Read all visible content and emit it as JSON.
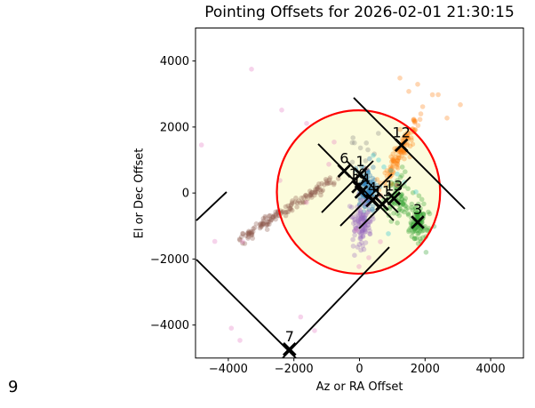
{
  "figure": {
    "title": "Pointing Offsets for 2026-02-01 21:30:15",
    "xlabel": "Az or RA Offset",
    "ylabel": "El or Dec Offset",
    "corner_label": "9",
    "xlim": [
      -5000,
      5000
    ],
    "ylim": [
      -5000,
      5000
    ],
    "xticks": [
      -4000,
      -2000,
      0,
      2000,
      4000
    ],
    "yticks": [
      -4000,
      -2000,
      0,
      2000,
      4000
    ],
    "background": "#ffffff",
    "frame_color": "#000000"
  },
  "chart_data": {
    "type": "scatter",
    "title": "Pointing Offsets for 2026-02-01 21:30:15",
    "xlabel": "Az or RA Offset",
    "ylabel": "El or Dec Offset",
    "xlim": [
      -5000,
      5000
    ],
    "ylim": [
      -5000,
      5000
    ],
    "grid": false,
    "legend": "none",
    "search_circle": {
      "center": [
        -30,
        30
      ],
      "radius": 2490,
      "fill_color": "#fbfbd0",
      "fill_opacity": 0.75,
      "edge_color": "#ff0000",
      "edge_width": 2.2
    },
    "clusters": [
      {
        "name": "blue-cluster",
        "kind": "gauss",
        "color": "#1f77b4",
        "center": [
          230,
          60
        ],
        "std": [
          150,
          320
        ],
        "n": 110
      },
      {
        "name": "purple-cluster",
        "kind": "gauss",
        "color": "#9467bd",
        "center": [
          70,
          -930
        ],
        "std": [
          160,
          350
        ],
        "n": 105
      },
      {
        "name": "green-cluster-13",
        "kind": "gauss",
        "color": "#2ca02c",
        "center": [
          1180,
          -140
        ],
        "std": [
          210,
          320
        ],
        "n": 70
      },
      {
        "name": "green-cluster-3",
        "kind": "gauss",
        "color": "#2ca02c",
        "center": [
          1775,
          -930
        ],
        "std": [
          155,
          330
        ],
        "n": 95
      },
      {
        "name": "orange-cluster",
        "kind": "gauss_rot",
        "color": "#ff7f0e",
        "center": [
          1274,
          1270
        ],
        "angle_deg": 61,
        "std_along": 620,
        "std_across": 110,
        "n": 115
      },
      {
        "name": "brown-trail",
        "kind": "trail",
        "color": "#8c564b",
        "from": [
          -3564,
          -1339
        ],
        "to": [
          -890,
          380
        ],
        "jitter": 85,
        "n": 135
      },
      {
        "name": "gray-cluster",
        "kind": "gauss",
        "color": "#7f7f7f",
        "center": [
          70,
          1350
        ],
        "std": [
          290,
          290
        ],
        "n": 10
      }
    ],
    "extra_points": [
      {
        "name": "orange-outliers",
        "color": "#ff7f0e",
        "points": [
          [
            1775,
            3296
          ],
          [
            1233,
            3485
          ],
          [
            1504,
            3081
          ],
          [
            2669,
            2272
          ],
          [
            3076,
            2676
          ],
          [
            2400,
            2980
          ]
        ]
      },
      {
        "name": "cyan-points",
        "color": "#17becf",
        "points": [
          [
            745,
            790
          ],
          [
            1152,
            574
          ],
          [
            1369,
            331
          ],
          [
            420,
            1140
          ],
          [
            881,
            -1231
          ],
          [
            1721,
            35
          ],
          [
            583,
            1000
          ],
          [
            960,
            680
          ]
        ]
      },
      {
        "name": "red-points",
        "color": "#d62728",
        "points": [
          [
            1144,
            242
          ],
          [
            203,
            736
          ],
          [
            640,
            -80
          ]
        ]
      },
      {
        "name": "pink-points",
        "color": "#e377c2",
        "points": [
          [
            -3293,
            3754
          ],
          [
            -2371,
            2514
          ],
          [
            -1612,
            2110
          ],
          [
            -4819,
            1455
          ],
          [
            -4412,
            -1466
          ],
          [
            -3564,
            -1474
          ],
          [
            -1794,
            -3756
          ],
          [
            -3908,
            -4096
          ],
          [
            -3645,
            -4465
          ],
          [
            -1369,
            -4169
          ],
          [
            -935,
            870
          ],
          [
            -1612,
            -288
          ],
          [
            -95,
            -1124
          ],
          [
            285,
            -1960
          ],
          [
            -14,
            -2229
          ],
          [
            637,
            -1474
          ],
          [
            -2425,
            381
          ],
          [
            -772,
            1544
          ]
        ]
      }
    ],
    "lines": [
      {
        "name": "line-6",
        "from": [
          -1260,
          1487
        ],
        "to": [
          1043,
          -831
        ]
      },
      {
        "name": "line-12",
        "from": [
          -176,
          2887
        ],
        "to": [
          3211,
          -481
        ]
      },
      {
        "name": "line-1",
        "from": [
          -393,
          974
        ],
        "to": [
          1179,
          -589
        ]
      },
      {
        "name": "line-a",
        "from": [
          -1152,
          -589
        ],
        "to": [
          420,
          974
        ]
      },
      {
        "name": "line-b",
        "from": [
          -583,
          -993
        ],
        "to": [
          989,
          570
        ]
      },
      {
        "name": "line-c",
        "from": [
          -14,
          -1074
        ],
        "to": [
          1558,
          489
        ]
      },
      {
        "name": "line-7a",
        "from": [
          -4973,
          -2016
        ],
        "to": [
          -1938,
          -5000
        ]
      },
      {
        "name": "line-7b",
        "from": [
          -2344,
          -5000
        ],
        "to": [
          908,
          -1640
        ]
      },
      {
        "name": "line-9",
        "from": [
          -4973,
          -831
        ],
        "to": [
          -4052,
          31
        ]
      }
    ],
    "markers": [
      {
        "label": "1",
        "x": 27,
        "y": 570
      },
      {
        "label": "10",
        "x": -41,
        "y": 193
      },
      {
        "label": "14",
        "x": 54,
        "y": 31
      },
      {
        "label": "4",
        "x": 393,
        "y": -225
      },
      {
        "label": "11",
        "x": 691,
        "y": -333
      },
      {
        "label": "13",
        "x": 1051,
        "y": -166
      },
      {
        "label": "6",
        "x": -466,
        "y": 670
      },
      {
        "label": "12",
        "x": 1279,
        "y": 1451
      },
      {
        "label": "3",
        "x": 1775,
        "y": -885
      },
      {
        "label": "7",
        "x": -2133,
        "y": -4730
      }
    ],
    "marker_style": {
      "shape": "x",
      "color": "#000000",
      "half_size": 6.8,
      "stroke_width": 2.8,
      "label_font_size": 16
    },
    "point_style": {
      "radius": 2.8,
      "opacity": 0.32
    },
    "line_style": {
      "color": "#000000",
      "width": 1.9
    }
  }
}
